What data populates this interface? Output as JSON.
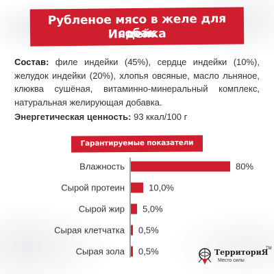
{
  "header": {
    "title_line1": "Рубленое мясо в желе для собак",
    "title_line2": "Индейка",
    "banner_color": "#cf1f2e"
  },
  "composition": {
    "label": "Состав:",
    "text": " филе индейки (45%), сердце индейки (10%), желудок индейки (20%), хлопья овсяные, масло льняное, клюква сушёная, витаминно-минеральный комплекс, натуральная желирующая добавка."
  },
  "energy": {
    "label": "Энергетическая ценность:",
    "value": " 93 ккал/100 г"
  },
  "chart_data": {
    "type": "bar",
    "orientation": "horizontal",
    "title": "Гарантируемые показатели",
    "categories": [
      "Влажность",
      "Сырой протеин",
      "Сырой жир",
      "Сырая клетчатка",
      "Сырая зола"
    ],
    "values": [
      80,
      10.0,
      5.0,
      0.5,
      0.5
    ],
    "value_labels": [
      "80%",
      "10,0%",
      "5,0%",
      "0,5%",
      "0,5%"
    ],
    "xlim": [
      0,
      80
    ],
    "grid": false,
    "bar_color": "#cf1f2e"
  },
  "logo": {
    "name": "ТерриториЯ",
    "tm": "TM",
    "tagline": "Место силы",
    "icon": "globe-pin-icon"
  }
}
